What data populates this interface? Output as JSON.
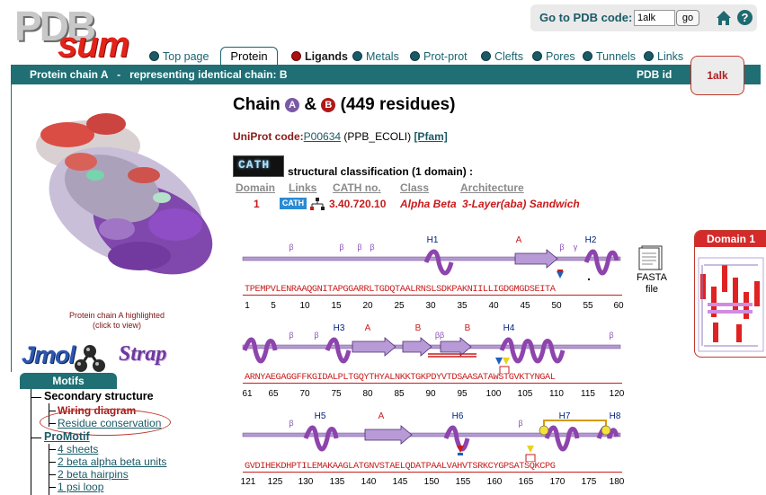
{
  "logo": {
    "text_pdb": "PDB",
    "text_sum": "sum"
  },
  "goto": {
    "label": "Go to PDB code:",
    "value": "1alk",
    "button": "go"
  },
  "nav": {
    "items": [
      {
        "label": "Top page"
      },
      {
        "label": "Protein",
        "active": true
      },
      {
        "label": "Ligands"
      },
      {
        "label": "Metals"
      },
      {
        "label": "Prot-prot"
      },
      {
        "label": "Clefts"
      },
      {
        "label": "Pores"
      },
      {
        "label": "Tunnels"
      },
      {
        "label": "Links"
      }
    ]
  },
  "bar": {
    "chain_label": "Protein chain A   -   representing identical chain: B",
    "pdb_id_label": "PDB id",
    "pdb_id": "1alk"
  },
  "left": {
    "caption_line1": "Protein chain A highlighted",
    "caption_line2": "(click to view)",
    "jmol": "Jmol",
    "strap": "Strap",
    "motifs_tab": "Motifs",
    "secondary_structure": "Secondary structure",
    "wiring_diagram": "Wiring diagram",
    "residue_conservation": "Residue conservation",
    "promotif": "ProMotif",
    "promotif_items": [
      "4 sheets",
      "2 beta alpha beta units",
      "2 beta hairpins",
      "1 psi loop"
    ]
  },
  "main": {
    "title_prefix": "Chain",
    "chain_a": "A",
    "amp": "&",
    "chain_b": "B",
    "residues": "(449 residues)",
    "uniprot_label": "UniProt code:",
    "uniprot_code": "P00634",
    "uniprot_name": "(PPB_ECOLI)",
    "pfam": "[Pfam]",
    "cath_logo": "CATH",
    "cath_title": "structural classification (1 domain) :",
    "cath_headers": [
      "Domain",
      "Links",
      "CATH no.",
      "Class",
      "Architecture"
    ],
    "cath_row": {
      "domain": "1",
      "link_badge": "CATH",
      "cath_no": "3.40.720.10",
      "class": "Alpha Beta",
      "architecture": "3-Layer(aba) Sandwich"
    },
    "domain_box_title": "Domain 1",
    "fasta_line1": "FASTA",
    "fasta_line2": "file"
  },
  "sequence": {
    "rows": [
      {
        "seq": "TPEMPVLENRAAQGNITAPGGARRLTGDQTAALRNSLSDKPAKNIILLIGDGMGDSEITA",
        "ticks": [
          "1",
          "5",
          "10",
          "15",
          "20",
          "25",
          "30",
          "35",
          "40",
          "45",
          "50",
          "55",
          "60"
        ],
        "labels": [
          {
            "t": "β",
            "k": "beta"
          },
          {
            "t": "β",
            "k": "beta"
          },
          {
            "t": "β",
            "k": "beta"
          },
          {
            "t": "β",
            "k": "beta"
          },
          {
            "t": "H1",
            "k": "helix"
          },
          {
            "t": "A",
            "k": "strand"
          },
          {
            "t": "β",
            "k": "beta"
          },
          {
            "t": "γ",
            "k": "beta"
          },
          {
            "t": "H2",
            "k": "helix"
          }
        ]
      },
      {
        "seq": "ARNYAEGAGGFFKGIDALPLTGQYTHYALNKKTGKPDYVTDSAASATAWSTGVKTYNGAL",
        "ticks": [
          "61",
          "65",
          "70",
          "75",
          "80",
          "85",
          "90",
          "95",
          "100",
          "105",
          "110",
          "115",
          "120"
        ],
        "labels": [
          {
            "t": "β",
            "k": "beta"
          },
          {
            "t": "β",
            "k": "beta"
          },
          {
            "t": "H3",
            "k": "helix"
          },
          {
            "t": "A",
            "k": "strand"
          },
          {
            "t": "B",
            "k": "strand"
          },
          {
            "t": "ββ",
            "k": "beta"
          },
          {
            "t": "B",
            "k": "strand"
          },
          {
            "t": "H4",
            "k": "helix"
          },
          {
            "t": "β",
            "k": "beta"
          }
        ]
      },
      {
        "seq": "GVDIHEKDHPTILEMAKAAGLATGNVSTAELQDATPAALVAHVTSRKCYGPSATSQKCPG",
        "ticks": [
          "121",
          "125",
          "130",
          "135",
          "140",
          "145",
          "150",
          "155",
          "160",
          "165",
          "170",
          "175",
          "180"
        ],
        "labels": [
          {
            "t": "β",
            "k": "beta"
          },
          {
            "t": "H5",
            "k": "helix"
          },
          {
            "t": "A",
            "k": "strand"
          },
          {
            "t": "H6",
            "k": "helix"
          },
          {
            "t": "β",
            "k": "beta"
          },
          {
            "t": "H7",
            "k": "helix"
          },
          {
            "t": "H8",
            "k": "helix"
          }
        ]
      }
    ]
  },
  "colors": {
    "teal": "#1f6f74",
    "red": "#c81c1c",
    "helix": "#8e44ad",
    "strand": "#b28ccf"
  }
}
